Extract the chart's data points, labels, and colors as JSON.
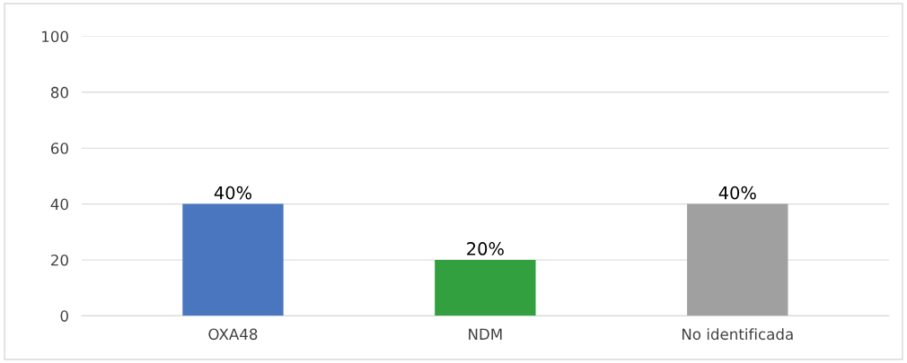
{
  "chart_data": {
    "type": "bar",
    "categories": [
      "OXA48",
      "NDM",
      "No identificada"
    ],
    "values": [
      40,
      20,
      40
    ],
    "colors": [
      "#4a76c0",
      "#33a040",
      "#a0a0a0"
    ],
    "value_labels": [
      "40%",
      "20%",
      "40%"
    ],
    "ylim": [
      0,
      100
    ],
    "yticks": [
      0,
      20,
      40,
      60,
      80,
      100
    ],
    "grid": "y"
  }
}
